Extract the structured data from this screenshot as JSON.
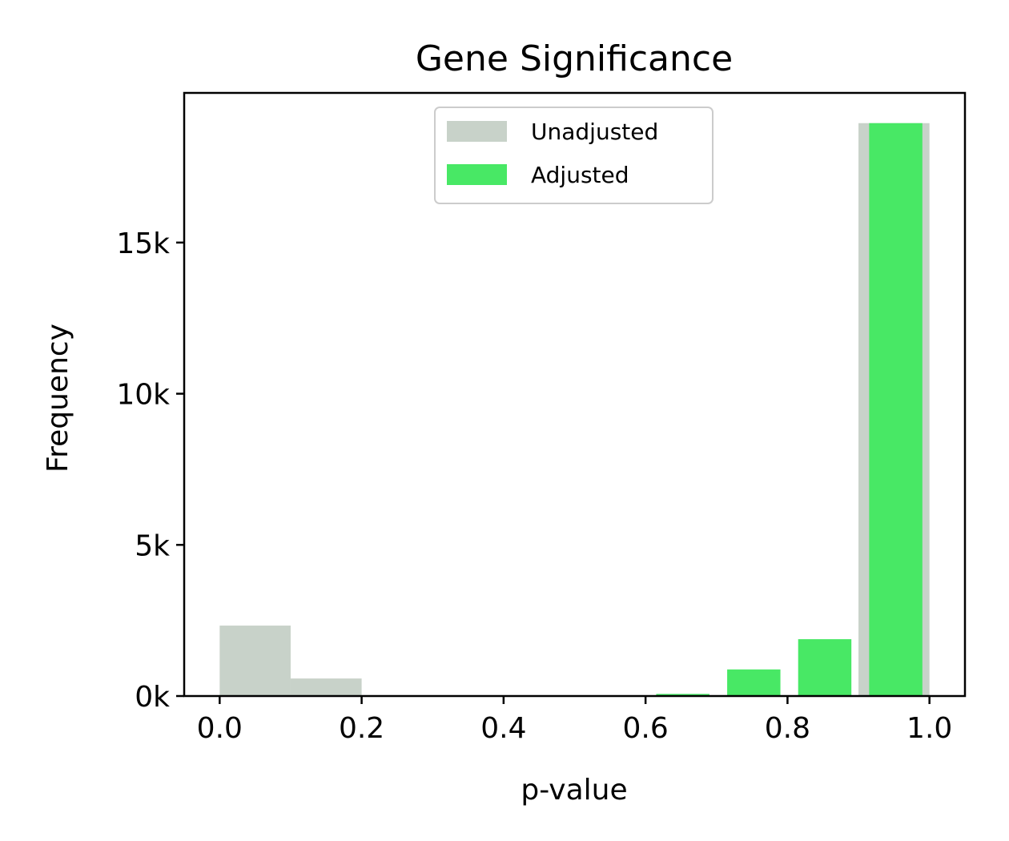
{
  "chart_data": {
    "type": "bar",
    "title": "Gene Significance",
    "xlabel": "p-value",
    "ylabel": "Frequency",
    "xlim": [
      -0.05,
      1.05
    ],
    "ylim": [
      0,
      19950
    ],
    "xticks": [
      0.0,
      0.2,
      0.4,
      0.6,
      0.8,
      1.0
    ],
    "xtick_labels": [
      "0.0",
      "0.2",
      "0.4",
      "0.6",
      "0.8",
      "1.0"
    ],
    "yticks": [
      0,
      5000,
      10000,
      15000
    ],
    "ytick_labels": [
      "0k",
      "5k",
      "10k",
      "15k"
    ],
    "legend_position": "upper center",
    "grid": false,
    "series": [
      {
        "name": "Unadjusted",
        "color": "#c8d2c9",
        "bins": [
          {
            "x0": 0.0,
            "x1": 0.1,
            "value": 2330
          },
          {
            "x0": 0.1,
            "x1": 0.2,
            "value": 580
          },
          {
            "x0": 0.9,
            "x1": 1.0,
            "value": 18950
          }
        ]
      },
      {
        "name": "Adjusted",
        "color": "#48e865",
        "bins": [
          {
            "x0": 0.615,
            "x1": 0.69,
            "value": 70
          },
          {
            "x0": 0.715,
            "x1": 0.79,
            "value": 880
          },
          {
            "x0": 0.815,
            "x1": 0.89,
            "value": 1880
          },
          {
            "x0": 0.915,
            "x1": 0.99,
            "value": 18950
          }
        ]
      }
    ]
  }
}
